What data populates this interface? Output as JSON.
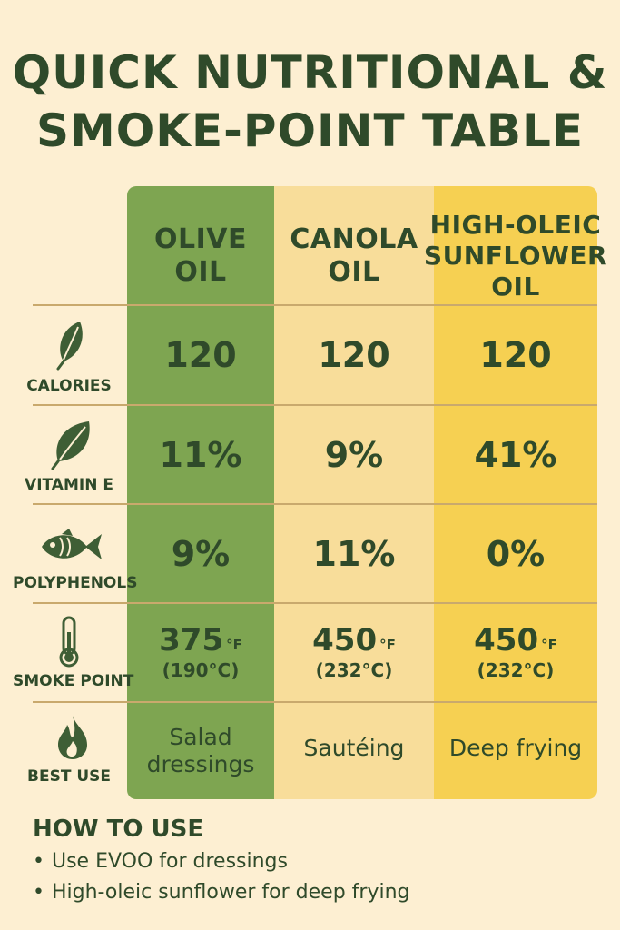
{
  "title": {
    "line1": "QUICK NUTRITIONAL &",
    "line2": "SMOKE-POINT TABLE"
  },
  "columns": [
    {
      "line1": "OLIVE",
      "line2": "OIL",
      "line3": ""
    },
    {
      "line1": "CANOLA",
      "line2": "OIL",
      "line3": ""
    },
    {
      "line1": "HIGH-OLEIC",
      "line2": "SUNFLOWER",
      "line3": "OIL"
    }
  ],
  "rows": {
    "calories": {
      "label": "CALORIES",
      "icon": "leaf-icon",
      "values": [
        "120",
        "120",
        "120"
      ]
    },
    "vitamin_e": {
      "label": "VITAMIN E",
      "icon": "leaf-icon",
      "values": [
        "11%",
        "9%",
        "41%"
      ]
    },
    "polyphenols": {
      "label": "POLYPHENOLS",
      "icon": "fish-icon",
      "values": [
        "9%",
        "11%",
        "0%"
      ]
    },
    "smoke_point": {
      "label": "SMOKE POINT",
      "icon": "thermometer-icon",
      "values": [
        {
          "f": "375",
          "unit": "°F",
          "c": "(190°C)"
        },
        {
          "f": "450",
          "unit": "°F",
          "c": "(232°C)"
        },
        {
          "f": "450",
          "unit": "°F",
          "c": "(232°C)"
        }
      ]
    },
    "best_use": {
      "label": "BEST USE",
      "icon": "flame-icon",
      "values": [
        {
          "line1": "Salad",
          "line2": "dressings"
        },
        {
          "line1": "Sautéing",
          "line2": ""
        },
        {
          "line1": "Deep frying",
          "line2": ""
        }
      ]
    }
  },
  "how_to_use": {
    "title": "HOW TO USE",
    "items": [
      "Use EVOO for dressings",
      "High-oleic sunflower for deep frying"
    ],
    "bullet": "•"
  },
  "colors": {
    "background": "#fdefd2",
    "olive": "#7ea551",
    "canola": "#f8dd9a",
    "sunflower": "#f6d052",
    "text": "#2f4a2a"
  }
}
